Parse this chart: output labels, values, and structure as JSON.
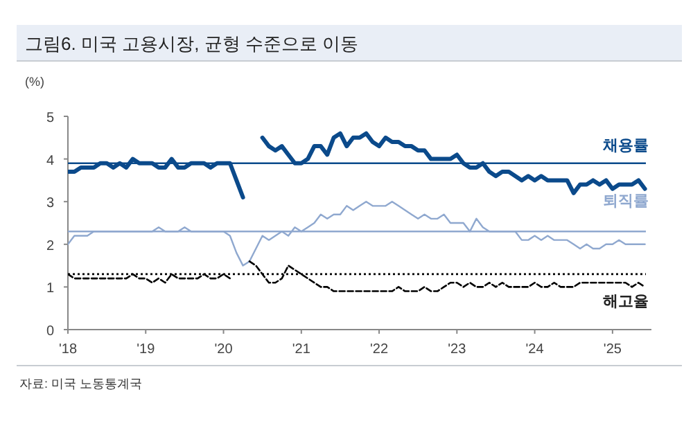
{
  "chart_data": {
    "type": "line",
    "title": "그림6. 미국 고용시장, 균형 수준으로 이동",
    "ylabel": "(%)",
    "annotations": [
      "자료: 미국 노동통계국"
    ],
    "x": [
      "2018-01",
      "2018-02",
      "2018-03",
      "2018-04",
      "2018-05",
      "2018-06",
      "2018-07",
      "2018-08",
      "2018-09",
      "2018-10",
      "2018-11",
      "2018-12",
      "2019-01",
      "2019-02",
      "2019-03",
      "2019-04",
      "2019-05",
      "2019-06",
      "2019-07",
      "2019-08",
      "2019-09",
      "2019-10",
      "2019-11",
      "2019-12",
      "2020-01",
      "2020-02",
      "2020-03",
      "2020-04",
      "2020-05",
      "2020-06",
      "2020-07",
      "2020-08",
      "2020-09",
      "2020-10",
      "2020-11",
      "2020-12",
      "2021-01",
      "2021-02",
      "2021-03",
      "2021-04",
      "2021-05",
      "2021-06",
      "2021-07",
      "2021-08",
      "2021-09",
      "2021-10",
      "2021-11",
      "2021-12",
      "2022-01",
      "2022-02",
      "2022-03",
      "2022-04",
      "2022-05",
      "2022-06",
      "2022-07",
      "2022-08",
      "2022-09",
      "2022-10",
      "2022-11",
      "2022-12",
      "2023-01",
      "2023-02",
      "2023-03",
      "2023-04",
      "2023-05",
      "2023-06",
      "2023-07",
      "2023-08",
      "2023-09",
      "2023-10",
      "2023-11",
      "2023-12",
      "2024-01",
      "2024-02",
      "2024-03",
      "2024-04",
      "2024-05",
      "2024-06",
      "2024-07",
      "2024-08",
      "2024-09",
      "2024-10",
      "2024-11",
      "2024-12",
      "2025-01",
      "2025-02",
      "2025-03",
      "2025-04",
      "2025-05",
      "2025-06"
    ],
    "series": [
      {
        "name": "채용률",
        "color": "#0b4a8b",
        "line_style": "solid",
        "values": [
          3.7,
          3.7,
          3.8,
          3.8,
          3.8,
          3.9,
          3.9,
          3.8,
          3.9,
          3.8,
          4.0,
          3.9,
          3.9,
          3.9,
          3.8,
          3.8,
          4.0,
          3.8,
          3.8,
          3.9,
          3.9,
          3.9,
          3.8,
          3.9,
          3.9,
          3.9,
          3.5,
          3.1,
          null,
          null,
          4.5,
          4.3,
          4.2,
          4.3,
          4.1,
          3.9,
          3.9,
          4.0,
          4.3,
          4.3,
          4.1,
          4.5,
          4.6,
          4.3,
          4.5,
          4.5,
          4.6,
          4.4,
          4.3,
          4.5,
          4.4,
          4.4,
          4.3,
          4.3,
          4.2,
          4.2,
          4.0,
          4.0,
          4.0,
          4.0,
          4.1,
          3.9,
          3.8,
          3.8,
          3.9,
          3.7,
          3.6,
          3.7,
          3.7,
          3.6,
          3.5,
          3.6,
          3.5,
          3.6,
          3.5,
          3.5,
          3.5,
          3.5,
          3.2,
          3.4,
          3.4,
          3.5,
          3.4,
          3.5,
          3.3,
          3.4,
          3.4,
          3.4,
          3.5,
          3.3
        ]
      },
      {
        "name": "퇴직률",
        "color": "#8fa8cf",
        "line_style": "solid",
        "values": [
          2.0,
          2.2,
          2.2,
          2.2,
          2.3,
          2.3,
          2.3,
          2.3,
          2.3,
          2.3,
          2.3,
          2.3,
          2.3,
          2.3,
          2.4,
          2.3,
          2.3,
          2.3,
          2.4,
          2.3,
          2.3,
          2.3,
          2.3,
          2.3,
          2.3,
          2.2,
          1.8,
          1.5,
          1.6,
          1.9,
          2.2,
          2.1,
          2.2,
          2.3,
          2.2,
          2.4,
          2.3,
          2.4,
          2.5,
          2.7,
          2.6,
          2.7,
          2.7,
          2.9,
          2.8,
          2.9,
          3.0,
          2.9,
          2.9,
          2.9,
          3.0,
          2.9,
          2.8,
          2.7,
          2.6,
          2.7,
          2.6,
          2.6,
          2.7,
          2.5,
          2.5,
          2.5,
          2.3,
          2.6,
          2.4,
          2.3,
          2.3,
          2.3,
          2.3,
          2.3,
          2.1,
          2.1,
          2.2,
          2.1,
          2.2,
          2.1,
          2.1,
          2.1,
          2.0,
          1.9,
          2.0,
          1.9,
          1.9,
          2.0,
          2.0,
          2.1,
          2.0,
          2.0,
          2.0,
          2.0
        ]
      },
      {
        "name": "해고율",
        "color": "#000000",
        "line_style": "dashed",
        "values": [
          1.3,
          1.2,
          1.2,
          1.2,
          1.2,
          1.2,
          1.2,
          1.2,
          1.2,
          1.2,
          1.3,
          1.2,
          1.2,
          1.1,
          1.2,
          1.1,
          1.3,
          1.2,
          1.2,
          1.2,
          1.2,
          1.3,
          1.2,
          1.2,
          1.3,
          1.2,
          null,
          null,
          1.6,
          1.5,
          1.3,
          1.1,
          1.1,
          1.2,
          1.5,
          1.4,
          1.3,
          1.2,
          1.1,
          1.0,
          1.0,
          0.9,
          0.9,
          0.9,
          0.9,
          0.9,
          0.9,
          0.9,
          0.9,
          0.9,
          0.9,
          1.0,
          0.9,
          0.9,
          0.9,
          1.0,
          0.9,
          0.9,
          1.0,
          1.1,
          1.1,
          1.0,
          1.1,
          1.0,
          1.0,
          1.1,
          1.0,
          1.1,
          1.0,
          1.0,
          1.0,
          1.0,
          1.1,
          1.0,
          1.0,
          1.1,
          1.0,
          1.0,
          1.0,
          1.1,
          1.1,
          1.1,
          1.1,
          1.1,
          1.1,
          1.1,
          1.1,
          1.0,
          1.1,
          1.0
        ]
      }
    ],
    "ref_lines": [
      {
        "axis": "y",
        "value": 3.9,
        "color": "#0b4a8b",
        "line_style": "solid"
      },
      {
        "axis": "y",
        "value": 2.3,
        "color": "#8fa8cf",
        "line_style": "solid"
      },
      {
        "axis": "y",
        "value": 1.3,
        "color": "#000000",
        "line_style": "dotted"
      }
    ],
    "xlim": [
      "2018-01",
      "2025-07"
    ],
    "xticks": [
      {
        "value": "2018-01",
        "label": "'18"
      },
      {
        "value": "2019-01",
        "label": "'19"
      },
      {
        "value": "2020-01",
        "label": "'20"
      },
      {
        "value": "2021-01",
        "label": "'21"
      },
      {
        "value": "2022-01",
        "label": "'22"
      },
      {
        "value": "2023-01",
        "label": "'23"
      },
      {
        "value": "2024-01",
        "label": "'24"
      },
      {
        "value": "2025-01",
        "label": "'25"
      }
    ],
    "ylim": [
      0,
      5
    ],
    "yticks": [
      0,
      1,
      2,
      3,
      4,
      5
    ],
    "grid": false,
    "legend": false,
    "marker": "none"
  }
}
